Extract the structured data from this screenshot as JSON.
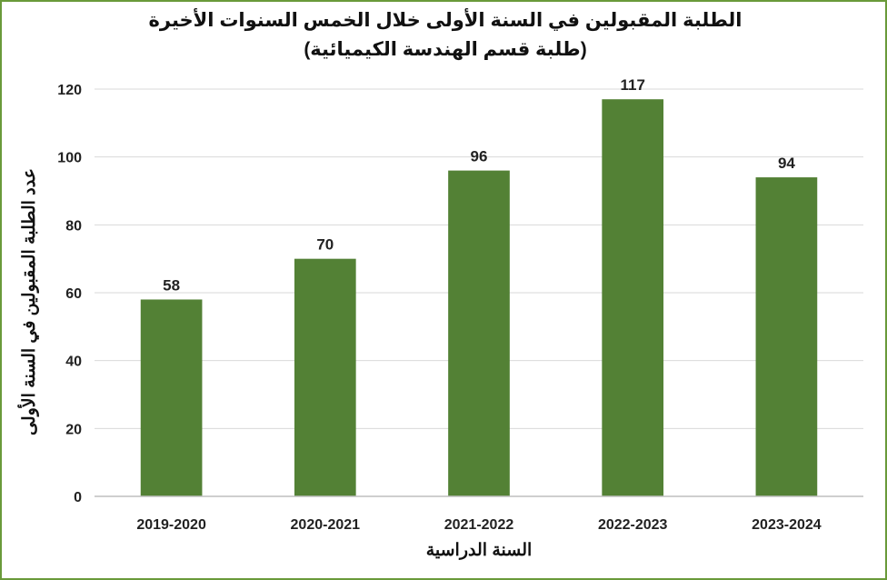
{
  "chart_data": {
    "type": "bar",
    "title": "الطلبة المقبولين في السنة الأولى خلال الخمس السنوات الأخيرة",
    "subtitle": "(طلبة قسم الهندسة الكيميائية)",
    "xlabel": "السنة الدراسية",
    "ylabel": "عدد الطلبة المقبولين في السنة الأولى",
    "categories": [
      "2019-2020",
      "2020-2021",
      "2021-2022",
      "2022-2023",
      "2023-2024"
    ],
    "values": [
      58,
      70,
      96,
      117,
      94
    ],
    "data_labels": [
      "58",
      "70",
      "96",
      "117",
      "94"
    ],
    "ylim": [
      0,
      120
    ],
    "yticks": [
      "0",
      "20",
      "40",
      "60",
      "80",
      "100",
      "120"
    ],
    "grid": true,
    "legend": false,
    "bar_color": "#538135",
    "grid_color": "#d9d9d9",
    "border_color": "#6a9a3a"
  }
}
